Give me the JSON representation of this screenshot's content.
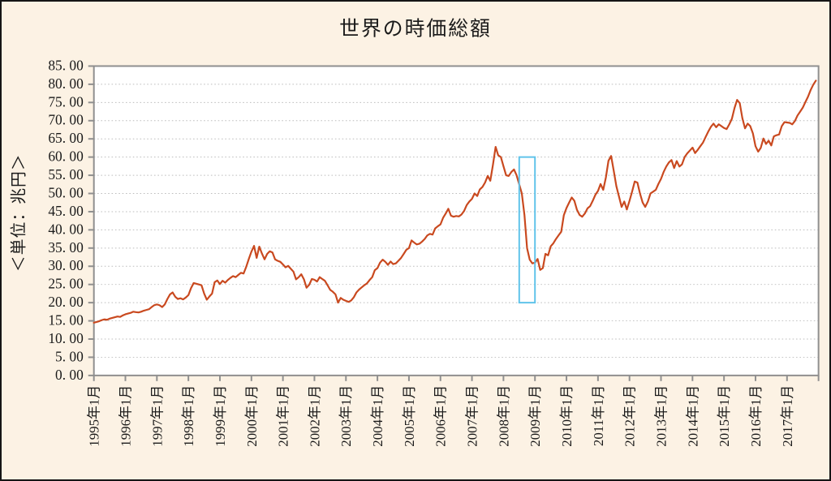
{
  "title": "世界の時価総額",
  "y_axis": {
    "unit_label": "＜単位：兆円＞",
    "min": 0,
    "max": 85,
    "step": 5,
    "tick_labels": [
      "0. 00",
      "5. 00",
      "10. 00",
      "15. 00",
      "20. 00",
      "25. 00",
      "30. 00",
      "35. 00",
      "40. 00",
      "45. 00",
      "50. 00",
      "55. 00",
      "60. 00",
      "65. 00",
      "70. 00",
      "75. 00",
      "80. 00",
      "85. 00"
    ]
  },
  "x_axis": {
    "tick_labels": [
      "1995年1月",
      "1996年1月",
      "1997年1月",
      "1998年1月",
      "1999年1月",
      "2000年1月",
      "2001年1月",
      "2002年1月",
      "2003年1月",
      "2004年1月",
      "2005年1月",
      "2006年1月",
      "2007年1月",
      "2008年1月",
      "2009年1月",
      "2010年1月",
      "2011年1月",
      "2012年1月",
      "2013年1月",
      "2014年1月",
      "2015年1月",
      "2016年1月",
      "2017年1月"
    ]
  },
  "highlight_box": {
    "from_label": "2008年7月",
    "to_label": "2009年1月",
    "start_month_index": 162,
    "end_month_index": 168,
    "y_from": 20,
    "y_to": 60,
    "color": "#5fc3ea"
  },
  "colors": {
    "figure_background": "#fcf2e4",
    "plot_background": "#ffffff",
    "line": "#c9491f",
    "gridline": "#bdbdbd",
    "axis": "#8f8f8f",
    "text": "#1a1a1a",
    "outer_border": "#151515",
    "highlight_box": "#5fc3ea"
  },
  "chart_data": {
    "type": "line",
    "title": "世界の時価総額",
    "xlabel": "",
    "ylabel": "＜単位：兆円＞",
    "ylim": [
      0,
      85
    ],
    "grid": true,
    "legend": "none",
    "x_start": "1995年1月",
    "x_end": "2017年12月",
    "x_frequency": "monthly",
    "x_tick_labels": [
      "1995年1月",
      "1996年1月",
      "1997年1月",
      "1998年1月",
      "1999年1月",
      "2000年1月",
      "2001年1月",
      "2002年1月",
      "2003年1月",
      "2004年1月",
      "2005年1月",
      "2006年1月",
      "2007年1月",
      "2008年1月",
      "2009年1月",
      "2010年1月",
      "2011年1月",
      "2012年1月",
      "2013年1月",
      "2014年1月",
      "2015年1月",
      "2016年1月",
      "2017年1月"
    ],
    "series": [
      {
        "name": "世界の時価総額",
        "color": "#c9491f",
        "values": [
          14.5,
          14.7,
          14.9,
          15.2,
          15.4,
          15.3,
          15.6,
          15.8,
          16.0,
          16.2,
          16.1,
          16.5,
          16.8,
          17.0,
          17.2,
          17.5,
          17.4,
          17.3,
          17.5,
          17.8,
          18.0,
          18.2,
          18.8,
          19.3,
          19.5,
          19.3,
          18.8,
          19.5,
          21.0,
          22.3,
          22.8,
          21.6,
          21.0,
          21.2,
          20.9,
          21.4,
          22.1,
          24.0,
          25.4,
          25.2,
          25.0,
          24.8,
          22.5,
          20.8,
          21.7,
          22.5,
          25.6,
          26.1,
          25.1,
          26.0,
          25.5,
          26.2,
          26.8,
          27.3,
          27.0,
          27.6,
          28.2,
          28.0,
          29.8,
          32.0,
          34.0,
          35.6,
          32.3,
          35.4,
          33.5,
          31.9,
          33.4,
          34.1,
          33.8,
          31.9,
          31.5,
          31.2,
          30.5,
          29.7,
          30.1,
          29.3,
          28.5,
          26.4,
          27.0,
          27.8,
          26.4,
          24.1,
          24.9,
          26.5,
          26.3,
          25.8,
          27.0,
          26.5,
          26.0,
          24.8,
          23.5,
          23.0,
          22.3,
          20.0,
          21.3,
          20.8,
          20.5,
          20.2,
          20.6,
          21.5,
          22.8,
          23.6,
          24.2,
          24.8,
          25.3,
          26.2,
          27.0,
          28.9,
          29.5,
          31.0,
          31.8,
          31.2,
          30.4,
          31.3,
          30.6,
          30.8,
          31.5,
          32.3,
          33.4,
          34.5,
          35.0,
          37.1,
          36.5,
          36.0,
          36.2,
          36.8,
          37.5,
          38.5,
          38.9,
          38.7,
          40.4,
          41.0,
          41.5,
          43.3,
          44.5,
          45.8,
          43.9,
          43.6,
          43.8,
          43.7,
          44.2,
          45.2,
          46.8,
          47.8,
          48.5,
          50.0,
          49.3,
          51.1,
          51.8,
          53.0,
          54.8,
          53.5,
          57.9,
          62.8,
          60.5,
          60.0,
          57.5,
          55.0,
          54.8,
          55.9,
          56.6,
          55.0,
          52.5,
          50.0,
          44.0,
          35.0,
          31.8,
          30.8,
          31.0,
          32.0,
          29.0,
          29.5,
          33.4,
          33.0,
          35.5,
          36.3,
          37.5,
          38.5,
          39.5,
          44.0,
          46.0,
          47.5,
          48.9,
          48.0,
          45.5,
          44.1,
          43.6,
          44.5,
          45.9,
          46.5,
          48.0,
          49.6,
          50.7,
          52.6,
          51.0,
          54.4,
          59.0,
          60.3,
          56.3,
          52.0,
          49.2,
          46.3,
          47.8,
          45.6,
          48.0,
          50.5,
          53.3,
          53.0,
          50.0,
          47.5,
          46.3,
          47.8,
          50.0,
          50.5,
          51.0,
          52.6,
          54.0,
          55.9,
          57.4,
          58.5,
          59.2,
          57.0,
          58.9,
          57.4,
          58.0,
          60.0,
          61.0,
          61.8,
          62.6,
          61.1,
          62.0,
          63.0,
          64.0,
          65.5,
          67.0,
          68.3,
          69.2,
          68.2,
          69.0,
          68.5,
          68.0,
          67.7,
          69.0,
          70.5,
          73.5,
          75.7,
          74.8,
          70.7,
          67.9,
          69.2,
          68.5,
          66.5,
          63.0,
          61.5,
          62.5,
          65.1,
          63.6,
          64.5,
          63.2,
          65.7,
          66.0,
          66.2,
          68.5,
          69.6,
          69.5,
          69.4,
          69.0,
          69.9,
          71.4,
          72.5,
          73.6,
          75.1,
          76.6,
          78.4,
          79.9,
          81.0
        ]
      }
    ]
  }
}
